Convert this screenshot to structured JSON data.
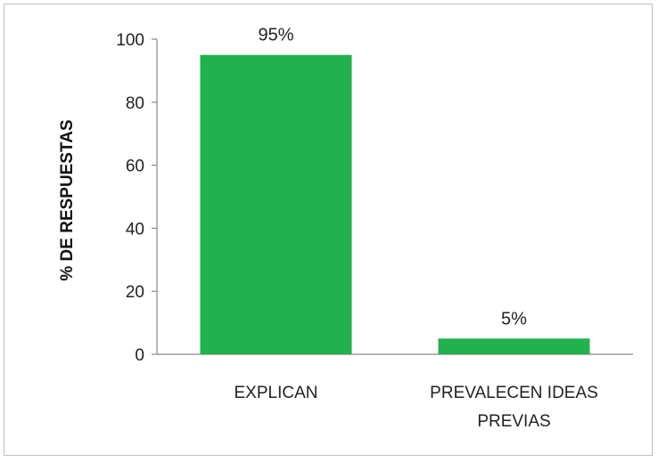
{
  "chart_data": {
    "type": "bar",
    "categories": [
      [
        "EXPLICAN"
      ],
      [
        "PREVALECEN IDEAS",
        "PREVIAS"
      ]
    ],
    "values": [
      95,
      5
    ],
    "data_labels": [
      "95%",
      "5%"
    ],
    "ylabel": "% DE RESPUESTAS",
    "ylim": [
      0,
      100
    ],
    "yticks": [
      0,
      20,
      40,
      60,
      80,
      100
    ],
    "grid": false,
    "legend": "none",
    "bar_color": "#23b14d",
    "axis_color": "#888888"
  }
}
